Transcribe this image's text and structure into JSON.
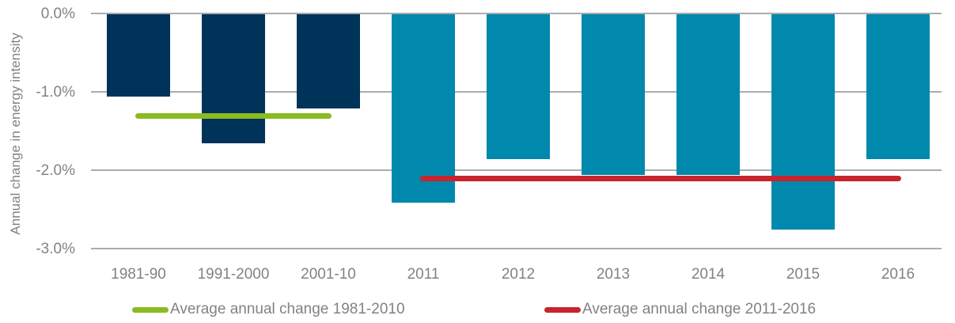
{
  "chart_data": {
    "type": "bar",
    "title": "",
    "xlabel": "",
    "ylabel": "Annual change in energy intensity",
    "ylim": [
      -3.0,
      0.0
    ],
    "grid": true,
    "legend_position": "bottom",
    "yticks": [
      {
        "value": 0,
        "label": "0.0%"
      },
      {
        "value": -1,
        "label": "-1.0%"
      },
      {
        "value": -2,
        "label": "-2.0%"
      },
      {
        "value": -3,
        "label": "-3.0%"
      }
    ],
    "categories": [
      "1981-90",
      "1991-2000",
      "2001-10",
      "2011",
      "2012",
      "2013",
      "2014",
      "2015",
      "2016"
    ],
    "values": [
      -1.05,
      -1.65,
      -1.2,
      -2.4,
      -1.85,
      -2.05,
      -2.05,
      -2.75,
      -1.85
    ],
    "bar_colors": [
      "#003359",
      "#003359",
      "#003359",
      "#0088ad",
      "#0088ad",
      "#0088ad",
      "#0088ad",
      "#0088ad",
      "#0088ad"
    ],
    "reference_lines": [
      {
        "label": "Average annual change 1981-2010",
        "value": -1.3,
        "color": "#8abb20",
        "from_category": "1981-90",
        "to_category": "2001-10",
        "from_index": 0,
        "to_index": 2
      },
      {
        "label": "Average annual change 2011-2016",
        "value": -2.1,
        "color": "#c9232e",
        "from_category": "2011",
        "to_category": "2016",
        "from_index": 3,
        "to_index": 8
      }
    ]
  },
  "colors": {
    "bar_historical": "#003359",
    "bar_annual": "#0088ad",
    "avg_line_1981_2010": "#8abb20",
    "avg_line_2011_2016": "#c9232e",
    "axis_text": "#808285",
    "gridline": "#aaacae",
    "background": "#ffffff"
  }
}
